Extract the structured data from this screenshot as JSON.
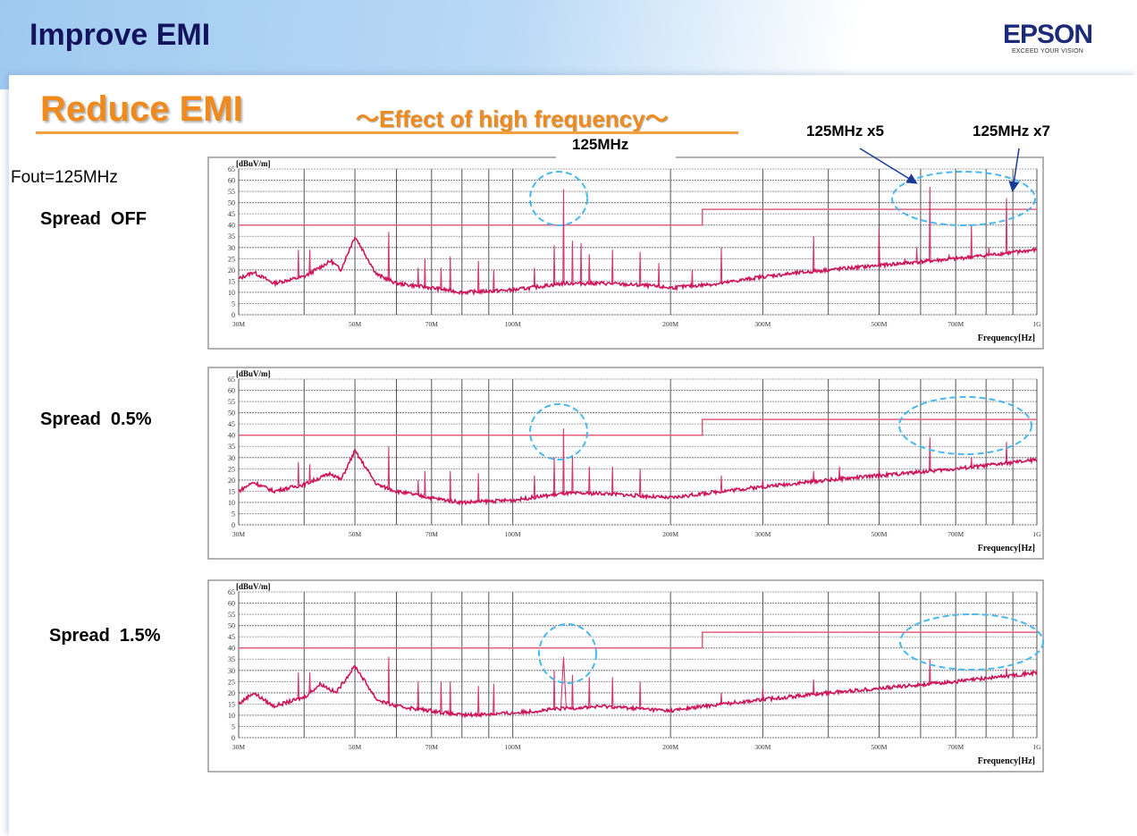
{
  "header": {
    "title": "Improve EMI",
    "logo": "EPSON",
    "logo_tagline": "EXCEED YOUR VISION"
  },
  "slide": {
    "title": "Reduce EMI",
    "subtitle": "～Effect of high frequency～"
  },
  "labels": {
    "fout": "Fout=125MHz",
    "spread_off": "Spread  OFF",
    "spread_05": "Spread  0.5%",
    "spread_15": "Spread  1.5%"
  },
  "annotations": {
    "fundamental": "125MHz",
    "harm5": "125MHz x5",
    "harm7": "125MHz x7"
  },
  "colors": {
    "trace": "#d0145a",
    "limit": "#e0607a",
    "highlight": "#48b8ee",
    "arrow": "#1a3a9a"
  },
  "chart_data": [
    {
      "type": "line",
      "name": "Spread OFF",
      "ylabel": "[dBuV/m]",
      "xlabel": "Frequency[Hz]",
      "xscale": "log",
      "xlim_MHz": [
        30,
        1000
      ],
      "ylim": [
        0,
        65
      ],
      "yticks": [
        0,
        5,
        10,
        15,
        20,
        25,
        30,
        35,
        40,
        45,
        50,
        55,
        60,
        65
      ],
      "xticks": [
        {
          "v": 30,
          "l": "30M"
        },
        {
          "v": 50,
          "l": "50M"
        },
        {
          "v": 70,
          "l": "70M"
        },
        {
          "v": 100,
          "l": "100M"
        },
        {
          "v": 200,
          "l": "200M"
        },
        {
          "v": 300,
          "l": "300M"
        },
        {
          "v": 500,
          "l": "500M"
        },
        {
          "v": 700,
          "l": "700M"
        },
        {
          "v": 1000,
          "l": "1G"
        }
      ],
      "limit": [
        {
          "from": 30,
          "to": 230,
          "value": 40
        },
        {
          "from": 230,
          "to": 1000,
          "value": 47
        }
      ],
      "baseline": [
        [
          30,
          16
        ],
        [
          32,
          19
        ],
        [
          35,
          14
        ],
        [
          40,
          17
        ],
        [
          45,
          24
        ],
        [
          47,
          20
        ],
        [
          50,
          35
        ],
        [
          55,
          18
        ],
        [
          60,
          14
        ],
        [
          70,
          12
        ],
        [
          80,
          10
        ],
        [
          100,
          11
        ],
        [
          125,
          14
        ],
        [
          150,
          14
        ],
        [
          180,
          13
        ],
        [
          200,
          12
        ],
        [
          250,
          14
        ],
        [
          300,
          17
        ],
        [
          400,
          20
        ],
        [
          500,
          22
        ],
        [
          700,
          25
        ],
        [
          1000,
          29
        ]
      ],
      "peaks": [
        [
          39,
          29
        ],
        [
          41,
          29
        ],
        [
          58,
          37
        ],
        [
          66,
          21
        ],
        [
          68,
          25
        ],
        [
          73,
          21
        ],
        [
          76,
          26
        ],
        [
          86,
          24
        ],
        [
          92,
          20
        ],
        [
          110,
          21
        ],
        [
          120,
          31
        ],
        [
          125,
          56
        ],
        [
          130,
          33
        ],
        [
          135,
          32
        ],
        [
          140,
          27
        ],
        [
          155,
          29
        ],
        [
          175,
          28
        ],
        [
          190,
          23
        ],
        [
          220,
          20
        ],
        [
          250,
          30
        ],
        [
          375,
          35
        ],
        [
          500,
          39
        ],
        [
          560,
          25
        ],
        [
          590,
          30
        ],
        [
          625,
          57
        ],
        [
          680,
          27
        ],
        [
          750,
          40
        ],
        [
          810,
          30
        ],
        [
          875,
          52
        ],
        [
          920,
          27
        ]
      ]
    },
    {
      "type": "line",
      "name": "Spread 0.5%",
      "ylabel": "[dBuV/m]",
      "xlabel": "Frequency[Hz]",
      "xscale": "log",
      "xlim_MHz": [
        30,
        1000
      ],
      "ylim": [
        0,
        65
      ],
      "limit": [
        {
          "from": 30,
          "to": 230,
          "value": 40
        },
        {
          "from": 230,
          "to": 1000,
          "value": 47
        }
      ],
      "baseline": [
        [
          30,
          15
        ],
        [
          32,
          19
        ],
        [
          35,
          15
        ],
        [
          40,
          18
        ],
        [
          45,
          23
        ],
        [
          47,
          20
        ],
        [
          50,
          33
        ],
        [
          55,
          18
        ],
        [
          60,
          15
        ],
        [
          70,
          12
        ],
        [
          80,
          10
        ],
        [
          100,
          11
        ],
        [
          125,
          14
        ],
        [
          150,
          14
        ],
        [
          200,
          12
        ],
        [
          250,
          15
        ],
        [
          300,
          17
        ],
        [
          400,
          20
        ],
        [
          500,
          22
        ],
        [
          700,
          25
        ],
        [
          1000,
          29
        ]
      ],
      "peaks": [
        [
          39,
          28
        ],
        [
          41,
          27
        ],
        [
          58,
          35
        ],
        [
          66,
          20
        ],
        [
          68,
          24
        ],
        [
          76,
          24
        ],
        [
          86,
          23
        ],
        [
          110,
          22
        ],
        [
          120,
          30
        ],
        [
          125,
          43
        ],
        [
          130,
          31
        ],
        [
          140,
          26
        ],
        [
          155,
          26
        ],
        [
          175,
          25
        ],
        [
          250,
          22
        ],
        [
          300,
          20
        ],
        [
          375,
          24
        ],
        [
          420,
          26
        ],
        [
          500,
          25
        ],
        [
          625,
          39
        ],
        [
          750,
          30
        ],
        [
          875,
          37
        ]
      ]
    },
    {
      "type": "line",
      "name": "Spread 1.5%",
      "ylabel": "[dBuV/m]",
      "xlabel": "Frequency[Hz]",
      "xscale": "log",
      "xlim_MHz": [
        30,
        1000
      ],
      "ylim": [
        0,
        65
      ],
      "limit": [
        {
          "from": 30,
          "to": 230,
          "value": 40
        },
        {
          "from": 230,
          "to": 1000,
          "value": 47
        }
      ],
      "baseline": [
        [
          30,
          15
        ],
        [
          32,
          20
        ],
        [
          35,
          14
        ],
        [
          40,
          18
        ],
        [
          43,
          24
        ],
        [
          46,
          20
        ],
        [
          50,
          32
        ],
        [
          55,
          17
        ],
        [
          60,
          14
        ],
        [
          70,
          12
        ],
        [
          80,
          10
        ],
        [
          100,
          11
        ],
        [
          125,
          13
        ],
        [
          150,
          14
        ],
        [
          200,
          12
        ],
        [
          250,
          15
        ],
        [
          300,
          17
        ],
        [
          400,
          20
        ],
        [
          500,
          22
        ],
        [
          700,
          25
        ],
        [
          1000,
          29
        ]
      ],
      "peaks": [
        [
          39,
          29
        ],
        [
          41,
          29
        ],
        [
          58,
          36
        ],
        [
          66,
          25
        ],
        [
          73,
          25
        ],
        [
          76,
          25
        ],
        [
          86,
          23
        ],
        [
          92,
          24
        ],
        [
          120,
          30
        ],
        [
          125,
          36
        ],
        [
          130,
          28
        ],
        [
          140,
          27
        ],
        [
          155,
          27
        ],
        [
          175,
          25
        ],
        [
          250,
          20
        ],
        [
          300,
          22
        ],
        [
          375,
          26
        ],
        [
          625,
          35
        ],
        [
          875,
          31
        ]
      ]
    }
  ]
}
